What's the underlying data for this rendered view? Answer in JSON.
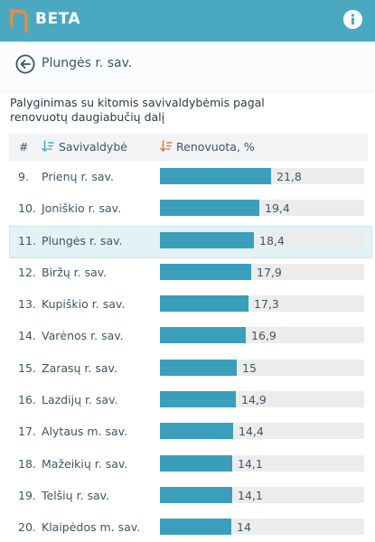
{
  "header": {
    "brand": "BETA",
    "logo_icon": "eta-logo-icon",
    "info_icon": "info-icon",
    "bar_color": "#4aa9c0"
  },
  "nav": {
    "back_icon": "arrow-left-circle-icon",
    "title": "Plungės r. sav."
  },
  "subtitle": "Palyginimas su kitomis savivaldybėmis pagal renovuotų daugiabučių dalį",
  "table": {
    "col_rank": "#",
    "col_name": "Savivaldybė",
    "col_pct": "Renovuota, %",
    "sort_icon_color_name": "#4aa9c0",
    "sort_icon_color_pct": "#e07a3a",
    "highlight_index": 2,
    "max_value": 40,
    "rows": [
      {
        "rank": "9.",
        "name": "Prienų r. sav.",
        "value": 21.8,
        "label": "21,8"
      },
      {
        "rank": "10.",
        "name": "Joniškio r. sav.",
        "value": 19.4,
        "label": "19,4"
      },
      {
        "rank": "11.",
        "name": "Plungės r. sav.",
        "value": 18.4,
        "label": "18,4"
      },
      {
        "rank": "12.",
        "name": "Biržų r. sav.",
        "value": 17.9,
        "label": "17,9"
      },
      {
        "rank": "13.",
        "name": "Kupiškio r. sav.",
        "value": 17.3,
        "label": "17,3"
      },
      {
        "rank": "14.",
        "name": "Varėnos r. sav.",
        "value": 16.9,
        "label": "16,9"
      },
      {
        "rank": "15.",
        "name": "Zarasų r. sav.",
        "value": 15,
        "label": "15"
      },
      {
        "rank": "16.",
        "name": "Lazdijų r. sav.",
        "value": 14.9,
        "label": "14,9"
      },
      {
        "rank": "17.",
        "name": "Alytaus m. sav.",
        "value": 14.4,
        "label": "14,4"
      },
      {
        "rank": "18.",
        "name": "Mažeikių r. sav.",
        "value": 14.1,
        "label": "14,1"
      },
      {
        "rank": "19.",
        "name": "Telšių r. sav.",
        "value": 14.1,
        "label": "14,1"
      },
      {
        "rank": "20.",
        "name": "Klaipėdos m. sav.",
        "value": 14,
        "label": "14"
      }
    ]
  }
}
